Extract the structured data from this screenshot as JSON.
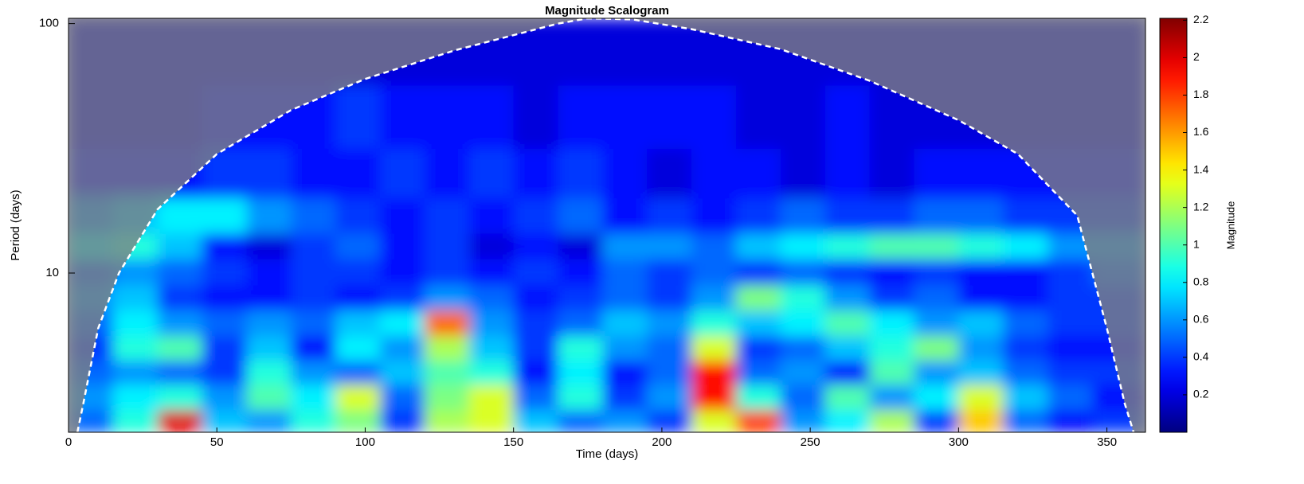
{
  "chart_data": {
    "type": "heatmap",
    "title": "Magnitude Scalogram",
    "x_label": "Time (days)",
    "y_label": "Period (days)",
    "colorbar_label": "Magnitude",
    "y_scale": "log",
    "colormap": "jet",
    "xlim": [
      0,
      363
    ],
    "ylim": [
      2.3,
      105
    ],
    "xticks": [
      0,
      50,
      100,
      150,
      200,
      250,
      300,
      350
    ],
    "yticks": [
      10,
      100
    ],
    "clim": [
      0,
      2.21
    ],
    "cticks": [
      0.2,
      0.4,
      0.6,
      0.8,
      1,
      1.2,
      1.4,
      1.6,
      1.8,
      2,
      2.2
    ],
    "x": [
      7.5,
      22.5,
      37.5,
      52.5,
      67.5,
      82.5,
      97.5,
      112.5,
      127.5,
      142.5,
      157.5,
      172.5,
      187.5,
      202.5,
      217.5,
      232.5,
      247.5,
      262.5,
      277.5,
      292.5,
      307.5,
      322.5,
      337.5,
      352.5
    ],
    "y": [
      2.5,
      3.2,
      4,
      5,
      6.3,
      8,
      10,
      13,
      16,
      25,
      40,
      80
    ],
    "values": [
      [
        0.5,
        0.9,
        2.0,
        0.7,
        0.6,
        0.9,
        1.1,
        0.4,
        1.2,
        1.3,
        0.7,
        0.5,
        0.6,
        0.4,
        1.3,
        1.8,
        0.6,
        0.8,
        1.2,
        0.4,
        1.5,
        0.5,
        0.3,
        0.4
      ],
      [
        0.6,
        0.8,
        0.9,
        0.6,
        1.0,
        0.8,
        1.3,
        0.5,
        1.1,
        1.3,
        0.5,
        0.9,
        0.4,
        0.6,
        1.9,
        0.9,
        0.5,
        1.0,
        0.6,
        0.8,
        1.3,
        0.7,
        0.5,
        0.3
      ],
      [
        0.5,
        0.6,
        0.5,
        0.4,
        0.9,
        0.6,
        0.5,
        0.7,
        1.0,
        0.9,
        0.3,
        0.8,
        0.3,
        0.5,
        1.9,
        0.5,
        0.6,
        0.3,
        1.0,
        0.6,
        0.7,
        0.5,
        0.4,
        0.4
      ],
      [
        0.4,
        0.9,
        1.0,
        0.4,
        0.7,
        0.3,
        0.8,
        0.6,
        1.2,
        0.7,
        0.4,
        0.9,
        0.6,
        0.5,
        1.3,
        0.4,
        0.5,
        0.7,
        0.9,
        1.1,
        0.6,
        0.4,
        0.3,
        0.3
      ],
      [
        0.5,
        0.8,
        0.6,
        0.5,
        0.6,
        0.5,
        0.7,
        0.8,
        1.7,
        0.6,
        0.4,
        0.5,
        0.7,
        0.6,
        0.9,
        0.7,
        0.8,
        1.0,
        0.8,
        0.6,
        0.7,
        0.5,
        0.4,
        0.4
      ],
      [
        0.6,
        0.7,
        0.4,
        0.3,
        0.3,
        0.4,
        0.3,
        0.4,
        0.6,
        0.5,
        0.3,
        0.4,
        0.5,
        0.4,
        0.6,
        1.1,
        0.9,
        0.6,
        0.4,
        0.5,
        0.3,
        0.3,
        0.4,
        0.4
      ],
      [
        0.5,
        0.6,
        0.5,
        0.4,
        0.3,
        0.4,
        0.4,
        0.3,
        0.4,
        0.3,
        0.4,
        0.3,
        0.5,
        0.4,
        0.5,
        0.4,
        0.5,
        0.4,
        0.3,
        0.4,
        0.3,
        0.3,
        0.4,
        0.5
      ],
      [
        0.8,
        0.9,
        0.7,
        0.3,
        0.2,
        0.4,
        0.5,
        0.3,
        0.4,
        0.2,
        0.3,
        0.2,
        0.6,
        0.6,
        0.5,
        0.7,
        0.8,
        0.9,
        1.0,
        1.0,
        0.9,
        0.8,
        0.6,
        0.6
      ],
      [
        0.6,
        0.7,
        0.8,
        0.8,
        0.6,
        0.5,
        0.4,
        0.3,
        0.4,
        0.3,
        0.4,
        0.5,
        0.3,
        0.4,
        0.3,
        0.4,
        0.5,
        0.4,
        0.4,
        0.5,
        0.5,
        0.4,
        0.4,
        0.4
      ],
      [
        0.3,
        0.3,
        0.3,
        0.4,
        0.4,
        0.3,
        0.3,
        0.4,
        0.3,
        0.4,
        0.3,
        0.4,
        0.3,
        0.2,
        0.3,
        0.3,
        0.2,
        0.3,
        0.2,
        0.3,
        0.3,
        0.3,
        0.3,
        0.3
      ],
      [
        0.2,
        0.2,
        0.2,
        0.3,
        0.3,
        0.3,
        0.4,
        0.3,
        0.3,
        0.3,
        0.2,
        0.3,
        0.3,
        0.3,
        0.3,
        0.2,
        0.2,
        0.3,
        0.2,
        0.2,
        0.2,
        0.2,
        0.2,
        0.2
      ],
      [
        0.2,
        0.2,
        0.2,
        0.2,
        0.2,
        0.2,
        0.2,
        0.2,
        0.2,
        0.2,
        0.2,
        0.2,
        0.2,
        0.2,
        0.2,
        0.2,
        0.2,
        0.2,
        0.2,
        0.2,
        0.2,
        0.2,
        0.2,
        0.2
      ]
    ],
    "coi": {
      "x": [
        3,
        5,
        10,
        17,
        30,
        50,
        75,
        100,
        130,
        165,
        175,
        190,
        210,
        240,
        270,
        300,
        320,
        340,
        350,
        356,
        359
      ],
      "values": [
        2.3,
        3,
        6,
        10,
        18,
        30,
        45,
        60,
        78,
        100,
        105,
        104,
        95,
        79,
        59,
        41,
        30,
        17,
        6,
        3,
        2.3
      ]
    }
  }
}
